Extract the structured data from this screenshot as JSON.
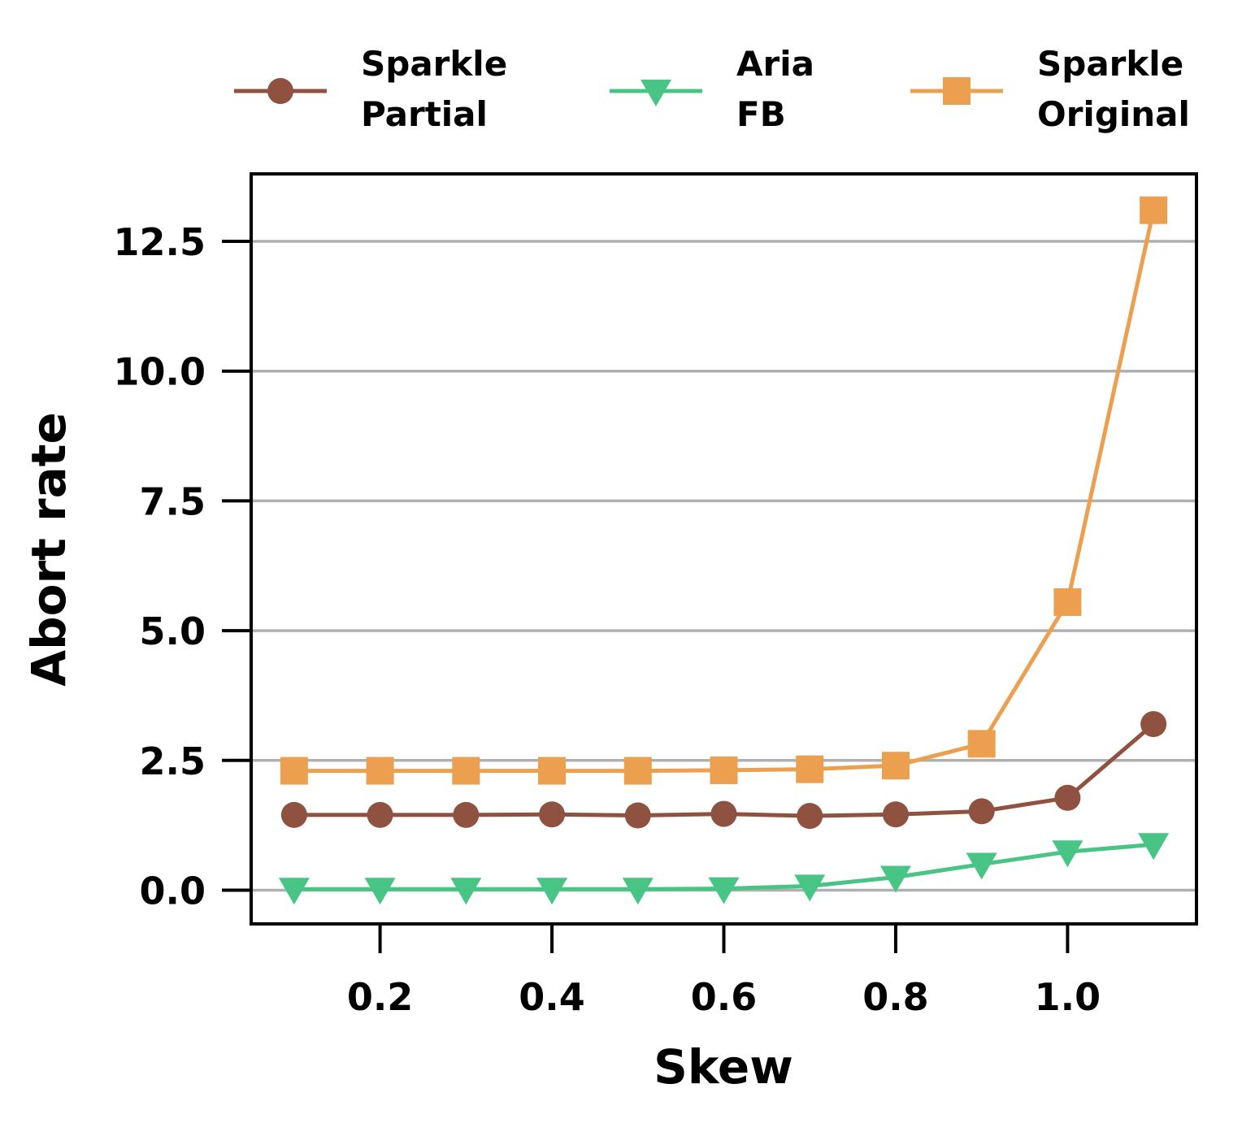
{
  "chart_data": {
    "type": "line",
    "xlabel": "Skew",
    "ylabel": "Abort rate",
    "x": [
      0.1,
      0.2,
      0.3,
      0.4,
      0.5,
      0.6,
      0.7,
      0.8,
      0.9,
      1.0,
      1.1
    ],
    "xlim": [
      0.05,
      1.15
    ],
    "ylim": [
      -0.65,
      13.8
    ],
    "xticks": [
      0.2,
      0.4,
      0.6,
      0.8,
      1.0
    ],
    "xtick_labels": [
      "0.2",
      "0.4",
      "0.6",
      "0.8",
      "1.0"
    ],
    "yticks": [
      0.0,
      2.5,
      5.0,
      7.5,
      10.0,
      12.5
    ],
    "ytick_labels": [
      "0.0",
      "2.5",
      "5.0",
      "7.5",
      "10.0",
      "12.5"
    ],
    "grid": "horizontal",
    "legend_position": "top, above plot",
    "series": [
      {
        "name": "Sparkle\nPartial",
        "legend_lines": [
          "Sparkle",
          "Partial"
        ],
        "color": "#8f5241",
        "marker": "circle",
        "values": [
          1.45,
          1.45,
          1.45,
          1.46,
          1.44,
          1.47,
          1.43,
          1.46,
          1.52,
          1.78,
          3.2
        ]
      },
      {
        "name": "Aria\nFB",
        "legend_lines": [
          "Aria",
          "FB"
        ],
        "color": "#48c484",
        "marker": "triangle-down",
        "values": [
          0.02,
          0.02,
          0.02,
          0.02,
          0.02,
          0.03,
          0.08,
          0.25,
          0.5,
          0.74,
          0.88
        ]
      },
      {
        "name": "Sparkle\nOriginal",
        "legend_lines": [
          "Sparkle",
          "Original"
        ],
        "color": "#eca04f",
        "marker": "square",
        "values": [
          2.3,
          2.3,
          2.3,
          2.3,
          2.3,
          2.31,
          2.33,
          2.4,
          2.82,
          5.55,
          13.1
        ]
      }
    ]
  }
}
